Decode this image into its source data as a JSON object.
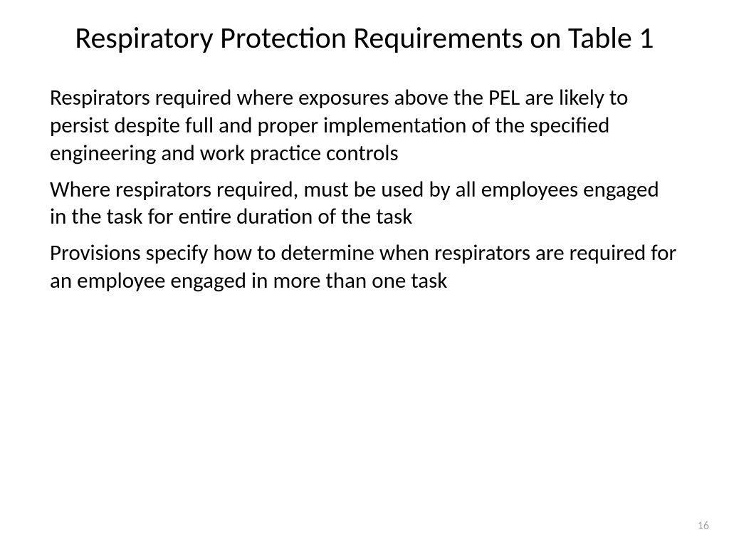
{
  "slide": {
    "title": "Respiratory Protection Requirements on Table 1",
    "paragraphs": [
      "Respirators required where exposures above the PEL are likely to persist despite full and proper implementation of the specified engineering and work practice controls",
      "Where respirators required, must be used by all employees engaged in the task for entire duration of the task",
      "Provisions specify how to determine when respirators are required for an employee engaged in more than one task"
    ],
    "page_number": "16"
  },
  "styling": {
    "background_color": "#ffffff",
    "title_color": "#000000",
    "title_fontsize": 42,
    "body_color": "#000000",
    "body_fontsize": 31,
    "page_number_color": "#a6a6a6",
    "page_number_fontsize": 16,
    "font_family": "Calibri"
  }
}
